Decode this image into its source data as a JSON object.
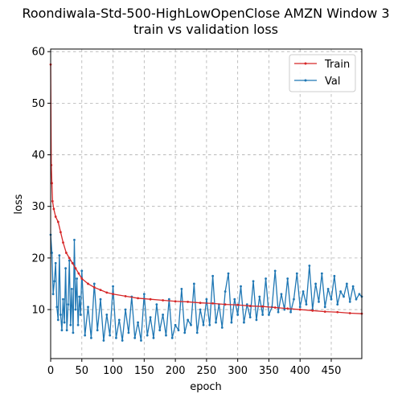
{
  "chart_data": {
    "type": "line",
    "title": "Roondiwala-Std-500-HighLowOpenClose AMZN Window 3",
    "subtitle": "train vs validation loss",
    "xlabel": "epoch",
    "ylabel": "loss",
    "xlim": [
      0,
      499
    ],
    "ylim": [
      0.5,
      60.5
    ],
    "x_ticks": [
      0,
      50,
      100,
      150,
      200,
      250,
      300,
      350,
      400,
      450
    ],
    "y_ticks": [
      10,
      20,
      30,
      40,
      50,
      60
    ],
    "grid": true,
    "legend_position": "top-right",
    "colors": {
      "train": "#d62728",
      "val": "#1f77b4"
    },
    "series": [
      {
        "name": "Train",
        "key": "train",
        "x": [
          0,
          1,
          2,
          3,
          5,
          8,
          12,
          16,
          20,
          25,
          30,
          35,
          40,
          45,
          50,
          60,
          70,
          80,
          90,
          100,
          120,
          140,
          160,
          180,
          200,
          220,
          240,
          260,
          280,
          300,
          320,
          340,
          360,
          380,
          400,
          420,
          440,
          460,
          480,
          499
        ],
        "y": [
          57.5,
          38.0,
          34.5,
          31.0,
          29.5,
          28.0,
          27.0,
          25.0,
          23.0,
          21.0,
          20.0,
          19.0,
          18.0,
          17.0,
          16.0,
          15.0,
          14.3,
          13.8,
          13.3,
          13.0,
          12.6,
          12.2,
          12.0,
          11.8,
          11.6,
          11.5,
          11.3,
          11.2,
          11.0,
          10.9,
          10.7,
          10.6,
          10.4,
          10.2,
          10.0,
          9.8,
          9.6,
          9.5,
          9.3,
          9.2
        ]
      },
      {
        "name": "Val",
        "key": "val",
        "x": [
          0,
          2,
          4,
          6,
          8,
          10,
          12,
          14,
          16,
          18,
          20,
          22,
          24,
          26,
          28,
          30,
          32,
          34,
          36,
          38,
          40,
          42,
          44,
          46,
          48,
          50,
          55,
          60,
          65,
          70,
          75,
          80,
          85,
          90,
          95,
          100,
          105,
          110,
          115,
          120,
          125,
          130,
          135,
          140,
          145,
          150,
          155,
          160,
          165,
          170,
          175,
          180,
          185,
          190,
          195,
          200,
          205,
          210,
          215,
          220,
          225,
          230,
          235,
          240,
          245,
          250,
          255,
          260,
          265,
          270,
          275,
          280,
          285,
          290,
          295,
          300,
          305,
          310,
          315,
          320,
          325,
          330,
          335,
          340,
          345,
          350,
          355,
          360,
          365,
          370,
          375,
          380,
          385,
          390,
          395,
          400,
          405,
          410,
          415,
          420,
          425,
          430,
          435,
          440,
          445,
          450,
          455,
          460,
          465,
          470,
          475,
          480,
          485,
          490,
          495,
          499
        ],
        "y": [
          24.5,
          21.0,
          13.0,
          15.5,
          19.0,
          10.5,
          8.0,
          20.5,
          9.0,
          6.0,
          12.0,
          7.5,
          18.0,
          6.0,
          11.0,
          19.5,
          7.0,
          14.0,
          5.5,
          23.5,
          10.0,
          16.0,
          7.0,
          12.5,
          9.0,
          17.5,
          5.0,
          10.5,
          4.5,
          15.0,
          6.0,
          12.0,
          4.0,
          9.0,
          5.0,
          14.5,
          4.5,
          8.0,
          4.0,
          10.0,
          5.5,
          12.5,
          4.5,
          7.5,
          4.0,
          13.0,
          5.0,
          8.5,
          4.5,
          11.0,
          6.0,
          9.0,
          5.0,
          12.0,
          4.5,
          7.0,
          6.0,
          14.0,
          5.5,
          8.0,
          7.0,
          15.0,
          5.5,
          10.0,
          7.0,
          12.0,
          7.0,
          16.5,
          7.5,
          11.0,
          6.5,
          13.5,
          17.0,
          7.5,
          12.0,
          9.0,
          14.5,
          7.5,
          11.0,
          8.5,
          15.5,
          8.0,
          12.5,
          9.0,
          16.0,
          9.0,
          10.5,
          17.5,
          9.5,
          13.0,
          10.0,
          16.0,
          9.5,
          12.0,
          17.0,
          10.5,
          13.5,
          11.0,
          18.5,
          10.0,
          15.0,
          11.5,
          17.0,
          10.5,
          14.0,
          12.0,
          16.5,
          11.0,
          13.5,
          12.5,
          15.0,
          11.5,
          14.5,
          12.0,
          13.0,
          12.5
        ]
      }
    ]
  }
}
